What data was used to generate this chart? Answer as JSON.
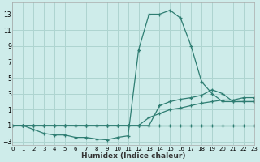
{
  "xlabel": "Humidex (Indice chaleur)",
  "background_color": "#ceecea",
  "grid_color": "#aed4d0",
  "line_color": "#2e7d72",
  "series": [
    {
      "x": [
        0,
        1,
        2,
        3,
        4,
        5,
        6,
        7,
        8,
        9,
        10,
        11,
        12,
        13,
        14,
        15,
        16,
        17,
        18,
        19,
        20,
        21,
        22,
        23
      ],
      "y": [
        -1,
        -1,
        -1.5,
        -2,
        -2.2,
        -2.2,
        -2.5,
        -2.5,
        -2.7,
        -2.8,
        -2.5,
        -2.3,
        8.5,
        13,
        13,
        13.5,
        12.5,
        9,
        4.5,
        3,
        2,
        2,
        2,
        2
      ]
    },
    {
      "x": [
        0,
        1,
        2,
        3,
        4,
        5,
        6,
        7,
        8,
        9,
        10,
        11,
        12,
        13,
        14,
        15,
        16,
        17,
        18,
        19,
        20,
        21,
        22,
        23
      ],
      "y": [
        -1,
        -1,
        -1,
        -1,
        -1,
        -1,
        -1,
        -1,
        -1,
        -1,
        -1,
        -1,
        -1,
        -1,
        -1,
        -1,
        -1,
        -1,
        -1,
        -1,
        -1,
        -1,
        -1,
        -1
      ]
    },
    {
      "x": [
        0,
        1,
        2,
        3,
        4,
        5,
        6,
        7,
        8,
        9,
        10,
        11,
        12,
        13,
        14,
        15,
        16,
        17,
        18,
        19,
        20,
        21,
        22,
        23
      ],
      "y": [
        -1,
        -1,
        -1,
        -1,
        -1,
        -1,
        -1,
        -1,
        -1,
        -1,
        -1,
        -1,
        -1,
        0,
        0.5,
        1,
        1.2,
        1.5,
        1.8,
        2,
        2.2,
        2.2,
        2.5,
        2.5
      ]
    },
    {
      "x": [
        0,
        1,
        2,
        3,
        4,
        5,
        6,
        7,
        8,
        9,
        10,
        11,
        12,
        13,
        14,
        15,
        16,
        17,
        18,
        19,
        20,
        21,
        22,
        23
      ],
      "y": [
        -1,
        -1,
        -1,
        -1,
        -1,
        -1,
        -1,
        -1,
        -1,
        -1,
        -1,
        -1,
        -1,
        -1,
        1.5,
        2,
        2.3,
        2.5,
        2.8,
        3.5,
        3,
        2,
        2,
        2
      ]
    }
  ],
  "xlim": [
    0,
    23
  ],
  "ylim": [
    -3.5,
    14.5
  ],
  "yticks": [
    -3,
    -1,
    1,
    3,
    5,
    7,
    9,
    11,
    13
  ],
  "xticks": [
    0,
    1,
    2,
    3,
    4,
    5,
    6,
    7,
    8,
    9,
    10,
    11,
    12,
    13,
    14,
    15,
    16,
    17,
    18,
    19,
    20,
    21,
    22,
    23
  ],
  "tick_fontsize": 5.5,
  "xlabel_fontsize": 6.5
}
